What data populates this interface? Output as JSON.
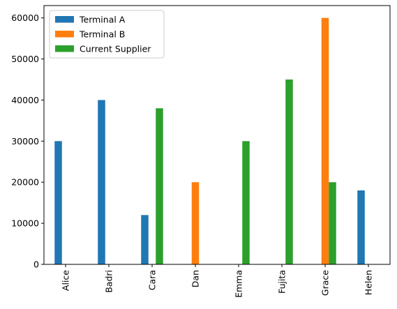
{
  "chart_data": {
    "type": "bar",
    "categories": [
      "Alice",
      "Badri",
      "Cara",
      "Dan",
      "Emma",
      "Fujita",
      "Grace",
      "Helen"
    ],
    "series": [
      {
        "name": "Terminal A",
        "color": "#1f77b4",
        "values": [
          30000,
          40000,
          12000,
          0,
          0,
          0,
          0,
          18000
        ]
      },
      {
        "name": "Terminal B",
        "color": "#ff7f0e",
        "values": [
          0,
          0,
          0,
          20000,
          0,
          0,
          60000,
          0
        ]
      },
      {
        "name": "Current Supplier",
        "color": "#2ca02c",
        "values": [
          0,
          0,
          38000,
          0,
          30000,
          45000,
          20000,
          0
        ]
      }
    ],
    "ylim": [
      0,
      63000
    ],
    "yticks": [
      0,
      10000,
      20000,
      30000,
      40000,
      50000,
      60000
    ],
    "legend_position": "top-left",
    "grid": false
  }
}
